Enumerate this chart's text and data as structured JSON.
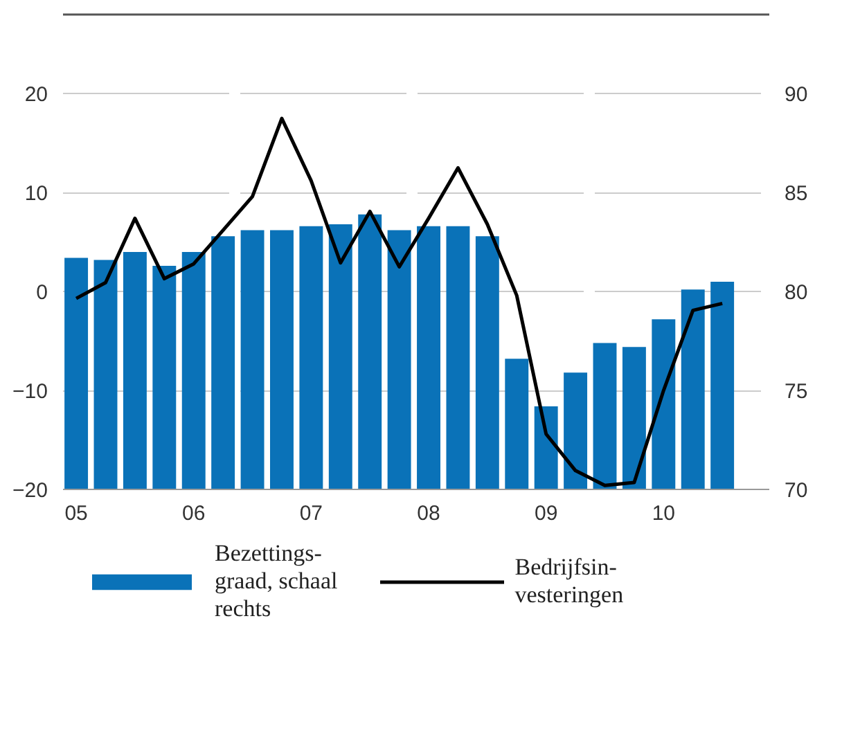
{
  "chart_data": {
    "type": "bar",
    "categories": [
      "05",
      null,
      null,
      null,
      "06",
      null,
      null,
      null,
      "07",
      null,
      null,
      null,
      "08",
      null,
      null,
      null,
      "09",
      null,
      null,
      null,
      "10",
      null,
      null
    ],
    "series": [
      {
        "name": "Bezettings-\ngraad, schaal\nrechts",
        "axis": "y2",
        "color": "#0a72b8",
        "values": [
          81.7,
          81.6,
          82.0,
          81.3,
          82.0,
          82.8,
          83.1,
          83.1,
          83.3,
          83.4,
          83.9,
          83.1,
          83.3,
          83.3,
          82.8,
          76.6,
          74.2,
          75.9,
          77.4,
          77.2,
          78.6,
          80.1,
          80.5
        ]
      },
      {
        "name": "Bedrijfsin-\nvesteringen",
        "type": "line",
        "color": "#000000",
        "values": [
          -0.7,
          0.9,
          7.4,
          1.3,
          2.8,
          6.2,
          9.6,
          17.5,
          11.2,
          2.9,
          8.1,
          2.5,
          7.4,
          12.5,
          6.8,
          -0.4,
          -14.4,
          -18.1,
          -19.6,
          -19.3,
          -10,
          -1.9,
          -1.2
        ]
      }
    ],
    "ylim": [
      -20,
      28
    ],
    "yticks": [
      -20,
      -10,
      0,
      10,
      20
    ],
    "y2lim": [
      70,
      94
    ],
    "y2ticks": [
      70,
      75,
      80,
      85,
      90
    ],
    "grid": "y",
    "legend": "bottom"
  }
}
